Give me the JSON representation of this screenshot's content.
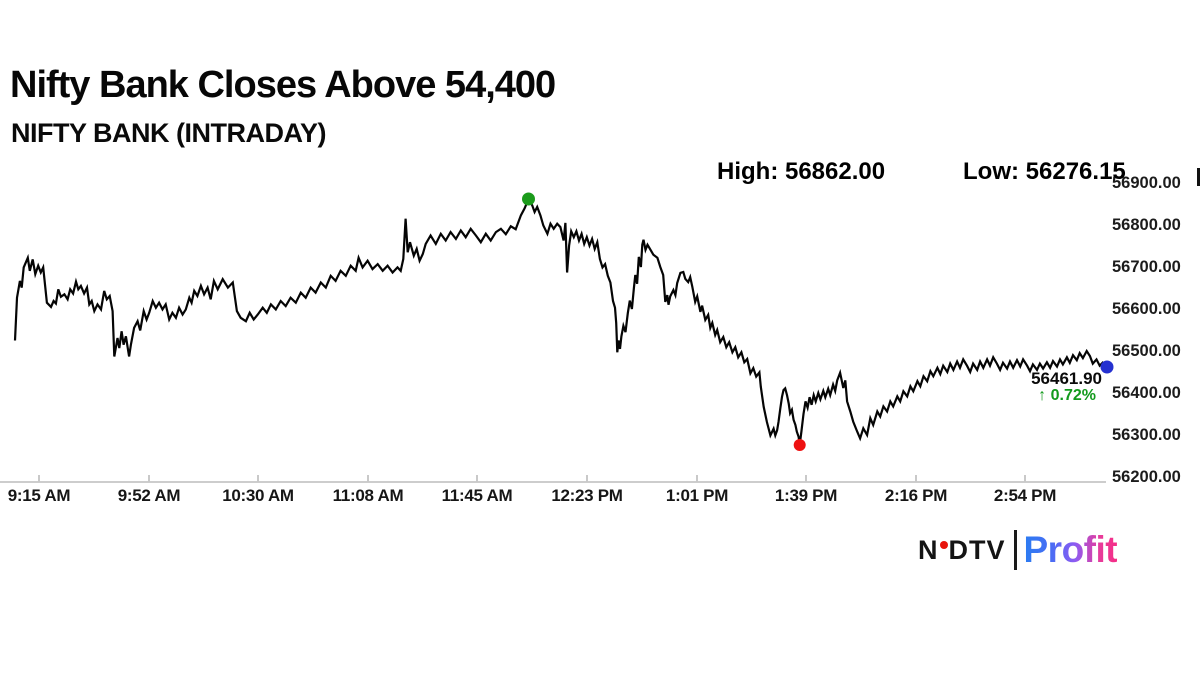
{
  "header": {
    "title": "Nifty Bank Closes Above 54,400",
    "subtitle": "NIFTY BANK (INTRADAY)"
  },
  "stats": {
    "high_label": "High:",
    "high_value": "56862.00",
    "low_label": "Low:",
    "low_value": "56276.15"
  },
  "last_trade": {
    "price": "56461.90",
    "arrow": "↑",
    "change": "0.72%",
    "change_color": "#129a1c"
  },
  "logo": {
    "ndtv_left": "N",
    "ndtv_right": "DTV",
    "profit": "Profit",
    "dot_color": "#e8150d"
  },
  "chart_data": {
    "type": "line",
    "title": "NIFTY BANK (INTRADAY)",
    "xlabel": "",
    "ylabel": "",
    "line_color": "#050505",
    "grid": false,
    "x_tick_labels": [
      "9:15 AM",
      "9:52 AM",
      "10:30 AM",
      "11:08 AM",
      "11:45 AM",
      "12:23 PM",
      "1:01 PM",
      "1:39 PM",
      "2:16 PM",
      "2:54 PM"
    ],
    "y_tick_labels": [
      "56900.00",
      "56800.00",
      "56700.00",
      "56600.00",
      "56500.00",
      "56400.00",
      "56300.00",
      "56200.00"
    ],
    "y_axis": {
      "min": 56200,
      "max": 56900,
      "step": 100
    },
    "x_axis": {
      "session_minutes": 376,
      "open_label": "9:15 AM"
    },
    "high_marker": {
      "t": 176.8,
      "price": 56862.0,
      "color": "#1b9b1b"
    },
    "low_marker": {
      "t": 270.2,
      "price": 56276.15,
      "color": "#ee1111"
    },
    "close_marker": {
      "t": 376,
      "price": 56461.9,
      "color": "#2531d0"
    },
    "series": [
      [
        0,
        56525
      ],
      [
        0.7,
        56627
      ],
      [
        1.7,
        56667
      ],
      [
        2.3,
        56651
      ],
      [
        3,
        56699
      ],
      [
        4.4,
        56722
      ],
      [
        5.1,
        56691
      ],
      [
        6.1,
        56718
      ],
      [
        7,
        56683
      ],
      [
        8,
        56703
      ],
      [
        8.9,
        56687
      ],
      [
        9.7,
        56699
      ],
      [
        11,
        56615
      ],
      [
        12.4,
        56605
      ],
      [
        13.3,
        56619
      ],
      [
        14.1,
        56613
      ],
      [
        14.9,
        56647
      ],
      [
        15.8,
        56629
      ],
      [
        17,
        56635
      ],
      [
        18.1,
        56623
      ],
      [
        19,
        56647
      ],
      [
        20,
        56637
      ],
      [
        21,
        56665
      ],
      [
        21.8,
        56647
      ],
      [
        22.7,
        56655
      ],
      [
        23.8,
        56637
      ],
      [
        24.8,
        56651
      ],
      [
        25.6,
        56611
      ],
      [
        26.4,
        56619
      ],
      [
        27.3,
        56595
      ],
      [
        28.4,
        56611
      ],
      [
        29.6,
        56599
      ],
      [
        30.7,
        56643
      ],
      [
        31.6,
        56623
      ],
      [
        32.6,
        56631
      ],
      [
        33.6,
        56595
      ],
      [
        34.2,
        56487
      ],
      [
        35.3,
        56531
      ],
      [
        35.9,
        56507
      ],
      [
        36.7,
        56547
      ],
      [
        37.4,
        56515
      ],
      [
        38.2,
        56535
      ],
      [
        39.3,
        56487
      ],
      [
        39.9,
        56515
      ],
      [
        41,
        56555
      ],
      [
        42.2,
        56571
      ],
      [
        43.1,
        56549
      ],
      [
        44.3,
        56595
      ],
      [
        45.3,
        56575
      ],
      [
        46.2,
        56591
      ],
      [
        47.4,
        56619
      ],
      [
        48.5,
        56603
      ],
      [
        49.6,
        56615
      ],
      [
        50.8,
        56599
      ],
      [
        51.9,
        56611
      ],
      [
        53.1,
        56575
      ],
      [
        54.2,
        56591
      ],
      [
        55.4,
        56579
      ],
      [
        56.5,
        56603
      ],
      [
        57.7,
        56587
      ],
      [
        58.8,
        56599
      ],
      [
        60,
        56627
      ],
      [
        60.8,
        56615
      ],
      [
        61.7,
        56643
      ],
      [
        62.8,
        56631
      ],
      [
        64,
        56655
      ],
      [
        65.1,
        56635
      ],
      [
        66.3,
        56651
      ],
      [
        67.4,
        56623
      ],
      [
        68.5,
        56667
      ],
      [
        69.8,
        56647
      ],
      [
        71.5,
        56671
      ],
      [
        73.3,
        56651
      ],
      [
        75,
        56663
      ],
      [
        76.4,
        56595
      ],
      [
        77.7,
        56579
      ],
      [
        79.5,
        56571
      ],
      [
        80.8,
        56591
      ],
      [
        82.2,
        56575
      ],
      [
        83.6,
        56587
      ],
      [
        85.3,
        56603
      ],
      [
        86.7,
        56591
      ],
      [
        88.1,
        56611
      ],
      [
        89.8,
        56599
      ],
      [
        91.5,
        56619
      ],
      [
        93.2,
        56607
      ],
      [
        94.9,
        56627
      ],
      [
        96.7,
        56615
      ],
      [
        98.4,
        56639
      ],
      [
        100.1,
        56627
      ],
      [
        101.8,
        56651
      ],
      [
        103.5,
        56639
      ],
      [
        105.3,
        56663
      ],
      [
        107,
        56651
      ],
      [
        108.7,
        56679
      ],
      [
        110.4,
        56667
      ],
      [
        112.1,
        56691
      ],
      [
        113.9,
        56679
      ],
      [
        115.6,
        56703
      ],
      [
        117.3,
        56691
      ],
      [
        118.3,
        56722
      ],
      [
        119.7,
        56699
      ],
      [
        121.4,
        56715
      ],
      [
        123.1,
        56695
      ],
      [
        124.9,
        56707
      ],
      [
        126.6,
        56691
      ],
      [
        128.3,
        56703
      ],
      [
        130,
        56687
      ],
      [
        131.7,
        56699
      ],
      [
        132.8,
        56691
      ],
      [
        133.7,
        56719
      ],
      [
        134.5,
        56815
      ],
      [
        135.2,
        56735
      ],
      [
        136,
        56759
      ],
      [
        137.3,
        56727
      ],
      [
        138.3,
        56743
      ],
      [
        139.3,
        56715
      ],
      [
        140.4,
        56731
      ],
      [
        141.4,
        56755
      ],
      [
        143.1,
        56775
      ],
      [
        144.9,
        56755
      ],
      [
        146.6,
        56779
      ],
      [
        148.3,
        56763
      ],
      [
        150,
        56783
      ],
      [
        151.8,
        56767
      ],
      [
        153.5,
        56787
      ],
      [
        155.2,
        56771
      ],
      [
        156.9,
        56791
      ],
      [
        158.7,
        56775
      ],
      [
        160.4,
        56759
      ],
      [
        162.1,
        56779
      ],
      [
        163.8,
        56763
      ],
      [
        165.6,
        56783
      ],
      [
        167.3,
        56791
      ],
      [
        169,
        56778
      ],
      [
        170.7,
        56797
      ],
      [
        172.4,
        56790
      ],
      [
        174.2,
        56823
      ],
      [
        175.5,
        56840
      ],
      [
        176.8,
        56862
      ],
      [
        178.1,
        56847
      ],
      [
        178.9,
        56831
      ],
      [
        179.8,
        56843
      ],
      [
        180.9,
        56823
      ],
      [
        181.9,
        56799
      ],
      [
        183.3,
        56779
      ],
      [
        184.4,
        56803
      ],
      [
        185.5,
        56791
      ],
      [
        186.7,
        56803
      ],
      [
        187.8,
        56795
      ],
      [
        188.9,
        56763
      ],
      [
        189.5,
        56805
      ],
      [
        190.1,
        56687
      ],
      [
        190.8,
        56751
      ],
      [
        191.5,
        56785
      ],
      [
        192.4,
        56771
      ],
      [
        193.3,
        56785
      ],
      [
        194.2,
        56763
      ],
      [
        195.1,
        56779
      ],
      [
        196,
        56755
      ],
      [
        196.9,
        56771
      ],
      [
        197.8,
        56751
      ],
      [
        198.7,
        56767
      ],
      [
        199.6,
        56743
      ],
      [
        200.5,
        56759
      ],
      [
        201.4,
        56719
      ],
      [
        202.3,
        56699
      ],
      [
        203.2,
        56707
      ],
      [
        204.1,
        56679
      ],
      [
        205,
        56663
      ],
      [
        205.9,
        56619
      ],
      [
        206.6,
        56603
      ],
      [
        207,
        56567
      ],
      [
        207.4,
        56497
      ],
      [
        207.8,
        56525
      ],
      [
        208.3,
        56505
      ],
      [
        208.8,
        56535
      ],
      [
        209.5,
        56560
      ],
      [
        210.2,
        56545
      ],
      [
        211,
        56590
      ],
      [
        211.7,
        56620
      ],
      [
        212.4,
        56600
      ],
      [
        213.1,
        56650
      ],
      [
        213.6,
        56681
      ],
      [
        214.2,
        56660
      ],
      [
        214.8,
        56724
      ],
      [
        215.5,
        56700
      ],
      [
        216,
        56753
      ],
      [
        216.4,
        56765
      ],
      [
        217.1,
        56741
      ],
      [
        217.8,
        56753
      ],
      [
        218.8,
        56741
      ],
      [
        219.8,
        56729
      ],
      [
        221.2,
        56722
      ],
      [
        222.2,
        56700
      ],
      [
        223.2,
        56681
      ],
      [
        223.9,
        56617
      ],
      [
        224.6,
        56633
      ],
      [
        225,
        56610
      ],
      [
        225.6,
        56630
      ],
      [
        226.7,
        56645
      ],
      [
        227.4,
        56633
      ],
      [
        228,
        56662
      ],
      [
        229.1,
        56686
      ],
      [
        230.1,
        56688
      ],
      [
        230.8,
        56672
      ],
      [
        231.8,
        56664
      ],
      [
        232.5,
        56676
      ],
      [
        233.2,
        56653
      ],
      [
        234.2,
        56617
      ],
      [
        234.9,
        56630
      ],
      [
        236,
        56593
      ],
      [
        236.6,
        56608
      ],
      [
        237.7,
        56574
      ],
      [
        238.7,
        56586
      ],
      [
        239.4,
        56555
      ],
      [
        240.1,
        56567
      ],
      [
        241.1,
        56538
      ],
      [
        241.8,
        56550
      ],
      [
        242.8,
        56521
      ],
      [
        243.9,
        56533
      ],
      [
        244.9,
        56509
      ],
      [
        245.9,
        56521
      ],
      [
        247,
        56497
      ],
      [
        248,
        56509
      ],
      [
        249,
        56485
      ],
      [
        250.1,
        56497
      ],
      [
        251.1,
        56473
      ],
      [
        252.1,
        56481
      ],
      [
        253.2,
        56447
      ],
      [
        254.2,
        56459
      ],
      [
        255.2,
        56439
      ],
      [
        256.3,
        56449
      ],
      [
        256.8,
        56415
      ],
      [
        257.8,
        56367
      ],
      [
        258.9,
        56331
      ],
      [
        260.1,
        56299
      ],
      [
        261.2,
        56315
      ],
      [
        261.8,
        56299
      ],
      [
        262.4,
        56311
      ],
      [
        262.9,
        56331
      ],
      [
        263.5,
        56363
      ],
      [
        264.1,
        56391
      ],
      [
        264.6,
        56407
      ],
      [
        265.2,
        56411
      ],
      [
        265.8,
        56395
      ],
      [
        266.4,
        56375
      ],
      [
        266.9,
        56352
      ],
      [
        267.5,
        56360
      ],
      [
        268.1,
        56336
      ],
      [
        268.7,
        56324
      ],
      [
        269.2,
        56308
      ],
      [
        269.8,
        56296
      ],
      [
        270.2,
        56276.15
      ],
      [
        270.8,
        56310
      ],
      [
        271.5,
        56350
      ],
      [
        272.2,
        56380
      ],
      [
        272.9,
        56365
      ],
      [
        273.6,
        56390
      ],
      [
        274.3,
        56372
      ],
      [
        275,
        56395
      ],
      [
        275.7,
        56380
      ],
      [
        276.6,
        56400
      ],
      [
        277.3,
        56385
      ],
      [
        278.3,
        56405
      ],
      [
        279,
        56390
      ],
      [
        280,
        56410
      ],
      [
        280.7,
        56395
      ],
      [
        281.7,
        56420
      ],
      [
        282.4,
        56405
      ],
      [
        283.1,
        56430
      ],
      [
        284.1,
        56448
      ],
      [
        285.2,
        56412
      ],
      [
        285.9,
        56430
      ],
      [
        286.5,
        56380
      ],
      [
        287.6,
        56356
      ],
      [
        288.6,
        56332
      ],
      [
        290,
        56308
      ],
      [
        291,
        56292
      ],
      [
        292.1,
        56316
      ],
      [
        293.4,
        56300
      ],
      [
        294.5,
        56340
      ],
      [
        295.5,
        56324
      ],
      [
        296.9,
        56356
      ],
      [
        297.9,
        56344
      ],
      [
        299,
        56368
      ],
      [
        300.3,
        56356
      ],
      [
        301.4,
        56380
      ],
      [
        302.4,
        56368
      ],
      [
        303.8,
        56392
      ],
      [
        304.8,
        56380
      ],
      [
        305.9,
        56404
      ],
      [
        307.2,
        56392
      ],
      [
        308.3,
        56416
      ],
      [
        309.3,
        56404
      ],
      [
        310.7,
        56428
      ],
      [
        311.7,
        56416
      ],
      [
        312.8,
        56440
      ],
      [
        314.1,
        56428
      ],
      [
        315.2,
        56452
      ],
      [
        316.2,
        56440
      ],
      [
        317.6,
        56460
      ],
      [
        318.6,
        56445
      ],
      [
        319.6,
        56465
      ],
      [
        321,
        56450
      ],
      [
        322,
        56470
      ],
      [
        323.1,
        56455
      ],
      [
        324.4,
        56475
      ],
      [
        325.4,
        56460
      ],
      [
        326.5,
        56480
      ],
      [
        327.8,
        56465
      ],
      [
        328.9,
        56450
      ],
      [
        329.9,
        56470
      ],
      [
        331.3,
        56455
      ],
      [
        332.3,
        56475
      ],
      [
        333.4,
        56460
      ],
      [
        334.7,
        56480
      ],
      [
        335.7,
        56465
      ],
      [
        336.8,
        56485
      ],
      [
        338.1,
        56470
      ],
      [
        339.2,
        56455
      ],
      [
        340.2,
        56472
      ],
      [
        341.6,
        56458
      ],
      [
        342.6,
        56475
      ],
      [
        343.7,
        56460
      ],
      [
        345,
        56478
      ],
      [
        346.1,
        56463
      ],
      [
        347.1,
        56480
      ],
      [
        348.5,
        56465
      ],
      [
        349.5,
        56452
      ],
      [
        350.5,
        56468
      ],
      [
        351.9,
        56455
      ],
      [
        352.9,
        56470
      ],
      [
        354,
        56458
      ],
      [
        355.3,
        56473
      ],
      [
        356.4,
        56460
      ],
      [
        357.4,
        56476
      ],
      [
        358.8,
        56463
      ],
      [
        359.8,
        56480
      ],
      [
        360.8,
        56468
      ],
      [
        362.2,
        56485
      ],
      [
        363.2,
        56472
      ],
      [
        364.3,
        56490
      ],
      [
        365.6,
        56478
      ],
      [
        366.6,
        56495
      ],
      [
        367.7,
        56483
      ],
      [
        369,
        56500
      ],
      [
        370.1,
        56488
      ],
      [
        371.1,
        56470
      ],
      [
        372.4,
        56480
      ],
      [
        373.5,
        56465
      ],
      [
        374.5,
        56472
      ],
      [
        375.4,
        56462
      ],
      [
        376,
        56461.9
      ]
    ]
  }
}
